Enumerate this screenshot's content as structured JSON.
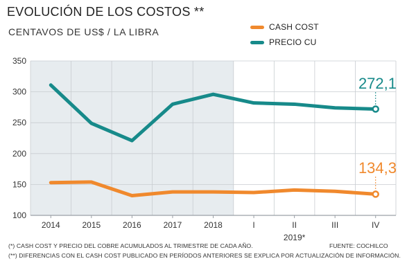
{
  "header": {
    "title": "EVOLUCIÓN DE LOS COSTOS **",
    "subtitle": "CENTAVOS DE US$ / LA LIBRA"
  },
  "legend": {
    "cash_cost": "CASH COST",
    "precio_cu": "PRECIO CU"
  },
  "colors": {
    "cash_cost": "#f0892d",
    "precio_cu": "#178a8a",
    "shade": "#e7ecef",
    "grid": "#c8ccd0",
    "axis": "#9aa0a6"
  },
  "chart_data": {
    "type": "line",
    "categories": [
      "2014",
      "2015",
      "2016",
      "2017",
      "2018",
      "I",
      "II",
      "III",
      "IV"
    ],
    "group_label": {
      "text": "2019*",
      "category": "II"
    },
    "series": [
      {
        "name": "PRECIO CU",
        "values": [
          311,
          249,
          221,
          280,
          296,
          282,
          280,
          274,
          272.1
        ]
      },
      {
        "name": "CASH COST",
        "values": [
          153,
          154,
          132,
          138,
          138,
          137,
          141,
          139,
          134.3
        ]
      }
    ],
    "end_labels": {
      "PRECIO CU": "272,1",
      "CASH COST": "134,3"
    },
    "ylim": [
      100,
      350
    ],
    "yticks": [
      100,
      150,
      200,
      250,
      300,
      350
    ],
    "shaded_categories": [
      "2014",
      "2015",
      "2016",
      "2017",
      "2018"
    ],
    "grid": true
  },
  "footer": {
    "note1": "(*) CASH COST Y PRECIO DEL COBRE ACUMULADOS AL TRIMESTRE DE CADA AÑO.",
    "note2": "(**) DIFERENCIAS CON EL CASH COST PUBLICADO EN PERÍODOS ANTERIORES SE EXPLICA POR ACTUALIZACIÓN DE INFORMACIÓN.",
    "source": "FUENTE: COCHILCO"
  }
}
